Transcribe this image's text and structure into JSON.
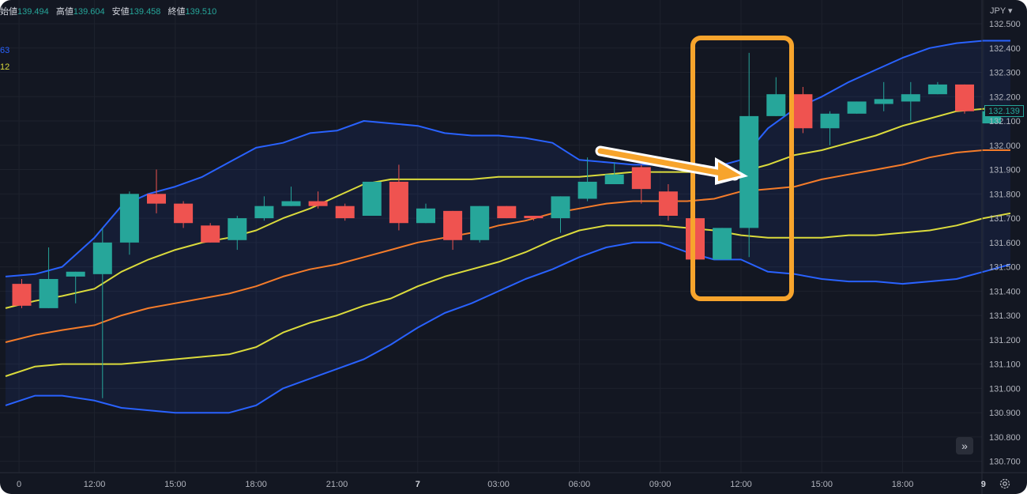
{
  "header": {
    "ohlc": [
      {
        "label": "始値",
        "value": "139.494"
      },
      {
        "label": "高値",
        "value": "139.604"
      },
      {
        "label": "安値",
        "value": "139.458"
      },
      {
        "label": "終値",
        "value": "139.510"
      }
    ],
    "indicator_values": [
      "63",
      "12"
    ]
  },
  "axis": {
    "currency": "JPY ▾",
    "current_price": "132.139"
  },
  "colors": {
    "background": "#131722",
    "up": "#26a69a",
    "down": "#ef5350",
    "outer_band": "#2962ff",
    "inner_band": "#dbdb3c",
    "basis": "#f57c2a",
    "highlight": "#f7a42c"
  },
  "icons": {
    "scroll_forward": "double-chevron-right-icon",
    "settings": "gear-icon"
  },
  "chart_data": {
    "type": "candlestick",
    "y_ticks": [
      "130.700",
      "130.800",
      "130.900",
      "131.000",
      "131.100",
      "131.200",
      "131.300",
      "131.400",
      "131.500",
      "131.600",
      "131.700",
      "131.800",
      "131.900",
      "132.000",
      "132.100",
      "132.200",
      "132.300",
      "132.400",
      "132.500"
    ],
    "ylim": [
      130.65,
      132.55
    ],
    "x_ticks": [
      {
        "label": "0",
        "i": -0.1,
        "bold": false
      },
      {
        "label": "12:00",
        "i": 2.7,
        "bold": false
      },
      {
        "label": "15:00",
        "i": 5.7,
        "bold": false
      },
      {
        "label": "18:00",
        "i": 8.7,
        "bold": false
      },
      {
        "label": "21:00",
        "i": 11.7,
        "bold": false
      },
      {
        "label": "7",
        "i": 14.7,
        "bold": true
      },
      {
        "label": "03:00",
        "i": 17.7,
        "bold": false
      },
      {
        "label": "06:00",
        "i": 20.7,
        "bold": false
      },
      {
        "label": "09:00",
        "i": 23.7,
        "bold": false
      },
      {
        "label": "12:00",
        "i": 26.7,
        "bold": false
      },
      {
        "label": "15:00",
        "i": 29.7,
        "bold": false
      },
      {
        "label": "18:00",
        "i": 32.7,
        "bold": false
      },
      {
        "label": "9",
        "i": 35.7,
        "bold": true
      }
    ],
    "candles": [
      {
        "o": 131.43,
        "h": 131.45,
        "l": 131.33,
        "c": 131.34
      },
      {
        "o": 131.33,
        "h": 131.58,
        "l": 131.33,
        "c": 131.45
      },
      {
        "o": 131.46,
        "h": 131.48,
        "l": 131.35,
        "c": 131.48
      },
      {
        "o": 131.47,
        "h": 131.66,
        "l": 130.96,
        "c": 131.6
      },
      {
        "o": 131.6,
        "h": 131.81,
        "l": 131.55,
        "c": 131.8
      },
      {
        "o": 131.8,
        "h": 131.9,
        "l": 131.72,
        "c": 131.76
      },
      {
        "o": 131.76,
        "h": 131.77,
        "l": 131.66,
        "c": 131.68
      },
      {
        "o": 131.67,
        "h": 131.68,
        "l": 131.6,
        "c": 131.6
      },
      {
        "o": 131.61,
        "h": 131.71,
        "l": 131.57,
        "c": 131.7
      },
      {
        "o": 131.7,
        "h": 131.79,
        "l": 131.69,
        "c": 131.75
      },
      {
        "o": 131.75,
        "h": 131.83,
        "l": 131.75,
        "c": 131.77
      },
      {
        "o": 131.77,
        "h": 131.81,
        "l": 131.74,
        "c": 131.75
      },
      {
        "o": 131.75,
        "h": 131.76,
        "l": 131.69,
        "c": 131.7
      },
      {
        "o": 131.71,
        "h": 131.85,
        "l": 131.71,
        "c": 131.85
      },
      {
        "o": 131.85,
        "h": 131.92,
        "l": 131.65,
        "c": 131.68
      },
      {
        "o": 131.68,
        "h": 131.76,
        "l": 131.68,
        "c": 131.74
      },
      {
        "o": 131.73,
        "h": 131.73,
        "l": 131.57,
        "c": 131.61
      },
      {
        "o": 131.61,
        "h": 131.75,
        "l": 131.6,
        "c": 131.75
      },
      {
        "o": 131.75,
        "h": 131.75,
        "l": 131.7,
        "c": 131.7
      },
      {
        "o": 131.71,
        "h": 131.71,
        "l": 131.69,
        "c": 131.7
      },
      {
        "o": 131.7,
        "h": 131.79,
        "l": 131.64,
        "c": 131.79
      },
      {
        "o": 131.78,
        "h": 131.95,
        "l": 131.77,
        "c": 131.85
      },
      {
        "o": 131.84,
        "h": 131.93,
        "l": 131.84,
        "c": 131.88
      },
      {
        "o": 131.91,
        "h": 131.92,
        "l": 131.76,
        "c": 131.82
      },
      {
        "o": 131.81,
        "h": 131.84,
        "l": 131.69,
        "c": 131.71
      },
      {
        "o": 131.7,
        "h": 131.7,
        "l": 131.53,
        "c": 131.53
      },
      {
        "o": 131.53,
        "h": 131.66,
        "l": 131.53,
        "c": 131.66
      },
      {
        "o": 131.66,
        "h": 132.38,
        "l": 131.54,
        "c": 132.12
      },
      {
        "o": 132.12,
        "h": 132.28,
        "l": 132.12,
        "c": 132.21
      },
      {
        "o": 132.21,
        "h": 132.24,
        "l": 132.05,
        "c": 132.07
      },
      {
        "o": 132.07,
        "h": 132.14,
        "l": 132.0,
        "c": 132.13
      },
      {
        "o": 132.13,
        "h": 132.18,
        "l": 132.13,
        "c": 132.18
      },
      {
        "o": 132.17,
        "h": 132.26,
        "l": 132.14,
        "c": 132.19
      },
      {
        "o": 132.18,
        "h": 132.26,
        "l": 132.1,
        "c": 132.21
      },
      {
        "o": 132.21,
        "h": 132.26,
        "l": 132.21,
        "c": 132.25
      },
      {
        "o": 132.25,
        "h": 132.25,
        "l": 132.13,
        "c": 132.14
      },
      {
        "o": 132.09,
        "h": 132.14,
        "l": 132.09,
        "c": 132.14
      }
    ],
    "bands": {
      "x_points": [
        -0.6,
        0.5,
        1.5,
        2.7,
        3.7,
        4.7,
        5.7,
        6.7,
        7.7,
        8.7,
        9.7,
        10.7,
        11.7,
        12.7,
        13.7,
        14.7,
        15.7,
        16.7,
        17.7,
        18.7,
        19.7,
        20.7,
        21.7,
        22.7,
        23.7,
        24.7,
        25.7,
        26.7,
        27.7,
        28.7,
        29.7,
        30.7,
        31.7,
        32.7,
        33.7,
        34.7,
        35.7,
        36.7
      ],
      "upper_outer": [
        131.46,
        131.47,
        131.5,
        131.62,
        131.75,
        131.8,
        131.83,
        131.87,
        131.93,
        131.99,
        132.01,
        132.05,
        132.06,
        132.1,
        132.09,
        132.08,
        132.05,
        132.04,
        132.04,
        132.03,
        132.01,
        131.94,
        131.93,
        131.92,
        131.92,
        131.91,
        131.91,
        131.94,
        132.07,
        132.15,
        132.2,
        132.26,
        132.31,
        132.36,
        132.4,
        132.42,
        132.43,
        132.43
      ],
      "upper_inner": [
        131.33,
        131.36,
        131.38,
        131.41,
        131.48,
        131.53,
        131.57,
        131.6,
        131.62,
        131.65,
        131.7,
        131.74,
        131.79,
        131.84,
        131.86,
        131.86,
        131.86,
        131.86,
        131.87,
        131.87,
        131.87,
        131.87,
        131.88,
        131.89,
        131.89,
        131.89,
        131.89,
        131.89,
        131.92,
        131.96,
        131.98,
        132.01,
        132.04,
        132.08,
        132.11,
        132.14,
        132.15,
        132.16
      ],
      "basis": [
        131.19,
        131.22,
        131.24,
        131.26,
        131.3,
        131.33,
        131.35,
        131.37,
        131.39,
        131.42,
        131.46,
        131.49,
        131.51,
        131.54,
        131.57,
        131.6,
        131.62,
        131.64,
        131.67,
        131.69,
        131.72,
        131.74,
        131.76,
        131.77,
        131.77,
        131.77,
        131.78,
        131.81,
        131.82,
        131.83,
        131.86,
        131.88,
        131.9,
        131.92,
        131.95,
        131.97,
        131.98,
        131.98
      ],
      "lower_inner": [
        131.05,
        131.09,
        131.1,
        131.1,
        131.1,
        131.11,
        131.12,
        131.13,
        131.14,
        131.17,
        131.23,
        131.27,
        131.3,
        131.34,
        131.37,
        131.42,
        131.46,
        131.49,
        131.52,
        131.56,
        131.61,
        131.65,
        131.67,
        131.67,
        131.67,
        131.66,
        131.65,
        131.63,
        131.62,
        131.62,
        131.62,
        131.63,
        131.63,
        131.64,
        131.65,
        131.67,
        131.7,
        131.72
      ],
      "lower_outer": [
        130.93,
        130.97,
        130.97,
        130.95,
        130.92,
        130.91,
        130.9,
        130.9,
        130.9,
        130.93,
        131.0,
        131.04,
        131.08,
        131.12,
        131.18,
        131.25,
        131.31,
        131.35,
        131.4,
        131.45,
        131.49,
        131.54,
        131.58,
        131.6,
        131.6,
        131.56,
        131.53,
        131.53,
        131.48,
        131.47,
        131.45,
        131.44,
        131.44,
        131.43,
        131.44,
        131.45,
        131.48,
        131.51
      ]
    }
  }
}
